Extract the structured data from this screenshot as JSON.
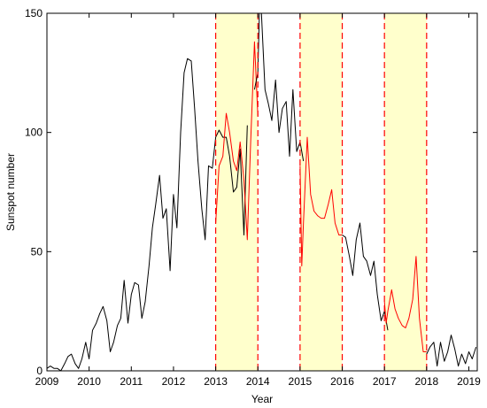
{
  "chart_data": {
    "type": "line",
    "xlabel": "Year",
    "ylabel": "Sunspot number",
    "xlim": [
      2009,
      2019.2
    ],
    "ylim": [
      0,
      150
    ],
    "x_ticks": [
      2009,
      2010,
      2011,
      2012,
      2013,
      2014,
      2015,
      2016,
      2017,
      2018,
      2019
    ],
    "x_tick_labels": [
      "2009",
      "2010",
      "2011",
      "2012",
      "2013",
      "2014",
      "2015",
      "2016",
      "2017",
      "2018",
      "2019"
    ],
    "y_ticks": [
      0,
      50,
      100,
      150
    ],
    "y_tick_labels": [
      "0",
      "50",
      "100",
      "150"
    ],
    "shaded_intervals": [
      {
        "start": 2013,
        "end": 2014
      },
      {
        "start": 2015,
        "end": 2016
      },
      {
        "start": 2017,
        "end": 2018
      }
    ],
    "colors": {
      "main_line": "#000000",
      "highlight_line": "#ff0000",
      "shade_fill": "#ffffcc",
      "boundary_line": "#ff0000",
      "frame": "#000000"
    },
    "series": [
      {
        "color": "#000000",
        "points": [
          [
            2009.0,
            1
          ],
          [
            2009.08,
            2
          ],
          [
            2009.17,
            1
          ],
          [
            2009.25,
            1
          ],
          [
            2009.33,
            0
          ],
          [
            2009.42,
            3
          ],
          [
            2009.5,
            6
          ],
          [
            2009.58,
            7
          ],
          [
            2009.67,
            3
          ],
          [
            2009.75,
            1
          ],
          [
            2009.83,
            5
          ],
          [
            2009.92,
            12
          ],
          [
            2010.0,
            5
          ],
          [
            2010.08,
            17
          ],
          [
            2010.17,
            20
          ],
          [
            2010.25,
            24
          ],
          [
            2010.33,
            27
          ],
          [
            2010.42,
            21
          ],
          [
            2010.5,
            8
          ],
          [
            2010.58,
            12
          ],
          [
            2010.67,
            19
          ],
          [
            2010.75,
            22
          ],
          [
            2010.83,
            38
          ],
          [
            2010.92,
            20
          ],
          [
            2011.0,
            32
          ],
          [
            2011.08,
            37
          ],
          [
            2011.17,
            36
          ],
          [
            2011.25,
            22
          ],
          [
            2011.33,
            29
          ],
          [
            2011.42,
            44
          ],
          [
            2011.5,
            60
          ],
          [
            2011.58,
            70
          ],
          [
            2011.67,
            82
          ],
          [
            2011.75,
            64
          ],
          [
            2011.83,
            68
          ],
          [
            2011.92,
            42
          ],
          [
            2012.0,
            74
          ],
          [
            2012.08,
            60
          ],
          [
            2012.17,
            100
          ],
          [
            2012.25,
            125
          ],
          [
            2012.33,
            131
          ],
          [
            2012.42,
            130
          ],
          [
            2012.5,
            110
          ],
          [
            2012.58,
            88
          ],
          [
            2012.67,
            68
          ],
          [
            2012.75,
            55
          ],
          [
            2012.83,
            86
          ],
          [
            2012.92,
            85
          ],
          [
            2013.0,
            98
          ],
          [
            2013.08,
            101
          ],
          [
            2013.17,
            98
          ],
          [
            2013.25,
            98
          ],
          [
            2013.33,
            90
          ],
          [
            2013.42,
            75
          ],
          [
            2013.5,
            77
          ],
          [
            2013.58,
            93
          ],
          [
            2013.67,
            57
          ],
          [
            2013.75,
            103
          ]
        ]
      },
      {
        "color": "#ff0000",
        "points": [
          [
            2013.0,
            62
          ],
          [
            2013.08,
            86
          ],
          [
            2013.17,
            90
          ],
          [
            2013.25,
            108
          ],
          [
            2013.33,
            100
          ],
          [
            2013.42,
            88
          ],
          [
            2013.5,
            84
          ],
          [
            2013.58,
            96
          ],
          [
            2013.67,
            80
          ],
          [
            2013.75,
            55
          ],
          [
            2013.83,
            96
          ],
          [
            2013.92,
            138
          ],
          [
            2014.0,
            107
          ]
        ]
      },
      {
        "color": "#000000",
        "points": [
          [
            2013.92,
            118
          ],
          [
            2014.0,
            125
          ],
          [
            2014.04,
            152
          ],
          [
            2014.08,
            152
          ],
          [
            2014.17,
            118
          ],
          [
            2014.25,
            112
          ],
          [
            2014.33,
            105
          ],
          [
            2014.42,
            122
          ],
          [
            2014.5,
            100
          ],
          [
            2014.58,
            110
          ],
          [
            2014.67,
            113
          ],
          [
            2014.75,
            90
          ],
          [
            2014.83,
            118
          ],
          [
            2014.92,
            92
          ],
          [
            2015.0,
            96
          ],
          [
            2015.08,
            88
          ]
        ]
      },
      {
        "color": "#ff0000",
        "points": [
          [
            2015.0,
            86
          ],
          [
            2015.04,
            44
          ],
          [
            2015.08,
            62
          ],
          [
            2015.17,
            98
          ],
          [
            2015.25,
            74
          ],
          [
            2015.33,
            67
          ],
          [
            2015.42,
            65
          ],
          [
            2015.5,
            64
          ],
          [
            2015.58,
            64
          ],
          [
            2015.67,
            70
          ],
          [
            2015.75,
            76
          ],
          [
            2015.83,
            62
          ],
          [
            2015.92,
            57
          ],
          [
            2016.0,
            57
          ]
        ]
      },
      {
        "color": "#000000",
        "points": [
          [
            2016.0,
            57
          ],
          [
            2016.08,
            56
          ],
          [
            2016.17,
            48
          ],
          [
            2016.25,
            40
          ],
          [
            2016.33,
            55
          ],
          [
            2016.42,
            62
          ],
          [
            2016.5,
            48
          ],
          [
            2016.58,
            46
          ],
          [
            2016.67,
            40
          ],
          [
            2016.75,
            46
          ],
          [
            2016.83,
            32
          ],
          [
            2016.92,
            21
          ],
          [
            2017.0,
            25
          ],
          [
            2017.08,
            17
          ]
        ]
      },
      {
        "color": "#ff0000",
        "points": [
          [
            2017.0,
            29
          ],
          [
            2017.04,
            20
          ],
          [
            2017.08,
            25
          ],
          [
            2017.17,
            34
          ],
          [
            2017.25,
            26
          ],
          [
            2017.33,
            22
          ],
          [
            2017.42,
            19
          ],
          [
            2017.5,
            18
          ],
          [
            2017.58,
            22
          ],
          [
            2017.67,
            30
          ],
          [
            2017.75,
            48
          ],
          [
            2017.83,
            22
          ],
          [
            2017.92,
            8
          ],
          [
            2018.0,
            8
          ]
        ]
      },
      {
        "color": "#000000",
        "points": [
          [
            2018.0,
            7
          ],
          [
            2018.08,
            10
          ],
          [
            2018.17,
            12
          ],
          [
            2018.25,
            2
          ],
          [
            2018.33,
            12
          ],
          [
            2018.42,
            4
          ],
          [
            2018.5,
            8
          ],
          [
            2018.58,
            15
          ],
          [
            2018.67,
            9
          ],
          [
            2018.75,
            2
          ],
          [
            2018.83,
            7
          ],
          [
            2018.92,
            3
          ],
          [
            2019.0,
            8
          ],
          [
            2019.08,
            5
          ],
          [
            2019.17,
            10
          ]
        ]
      }
    ]
  }
}
